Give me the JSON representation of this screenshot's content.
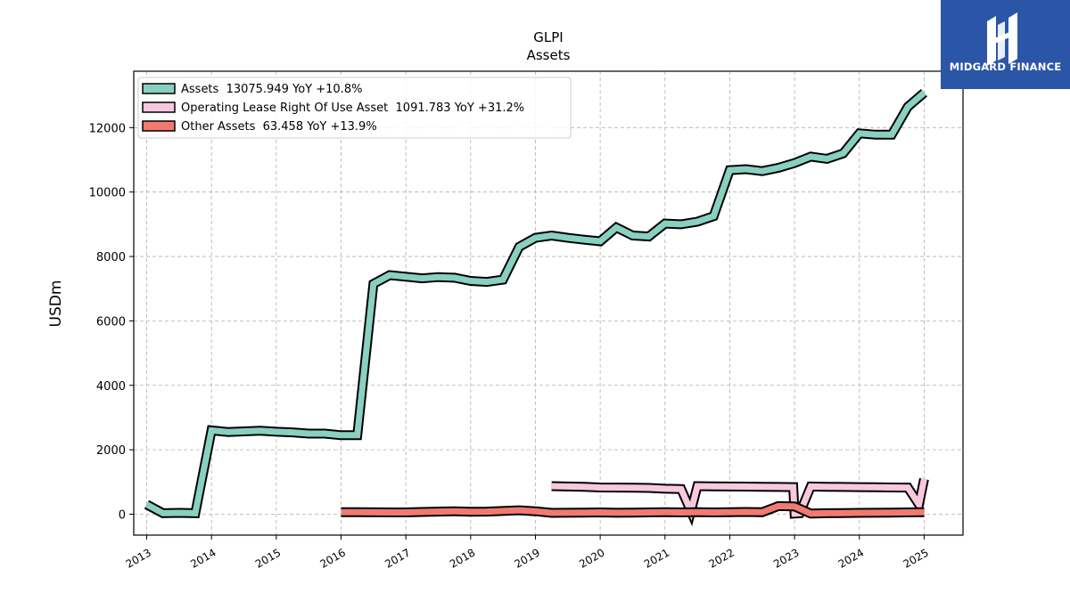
{
  "brand": {
    "logo_text": "MIDGARD FINANCE"
  },
  "chart_data": {
    "type": "line",
    "title": "GLPI",
    "subtitle": "Assets",
    "ylabel": "USDm",
    "xlabel": "",
    "ylim": [
      -650,
      13750
    ],
    "xlim": [
      2012.8,
      2025.6
    ],
    "yticks": [
      0,
      2000,
      4000,
      6000,
      8000,
      10000,
      12000
    ],
    "xticks": [
      2013,
      2014,
      2015,
      2016,
      2017,
      2018,
      2019,
      2020,
      2021,
      2022,
      2023,
      2024,
      2025
    ],
    "grid": true,
    "legend_position": "top-left",
    "series": [
      {
        "name": "Assets",
        "legend": "Assets  13075.949 YoY +10.8%",
        "color": "#88d0c0",
        "x": [
          2013.0,
          2013.25,
          2013.5,
          2013.75,
          2014.0,
          2014.25,
          2014.5,
          2014.75,
          2015.0,
          2015.25,
          2015.5,
          2015.75,
          2016.0,
          2016.25,
          2016.5,
          2016.75,
          2017.0,
          2017.25,
          2017.5,
          2017.75,
          2018.0,
          2018.25,
          2018.5,
          2018.75,
          2019.0,
          2019.25,
          2019.5,
          2019.75,
          2020.0,
          2020.25,
          2020.5,
          2020.75,
          2021.0,
          2021.25,
          2021.5,
          2021.75,
          2022.0,
          2022.25,
          2022.5,
          2022.75,
          2023.0,
          2023.25,
          2023.5,
          2023.75,
          2024.0,
          2024.25,
          2024.5,
          2024.75,
          2025.0
        ],
        "values": [
          300,
          30,
          40,
          30,
          2600,
          2550,
          2570,
          2590,
          2560,
          2540,
          2500,
          2500,
          2450,
          2450,
          7150,
          7420,
          7370,
          7320,
          7360,
          7340,
          7240,
          7210,
          7280,
          8300,
          8580,
          8650,
          8580,
          8520,
          8470,
          8900,
          8650,
          8620,
          9020,
          9000,
          9080,
          9250,
          10680,
          10710,
          10650,
          10750,
          10900,
          11100,
          11030,
          11200,
          11820,
          11780,
          11780,
          12650,
          13080
        ]
      },
      {
        "name": "Operating Lease Right Of Use Asset",
        "legend": "Operating Lease Right Of Use Asset  1091.783 YoY +31.2%",
        "color": "#f9c8dd",
        "x": [
          2019.25,
          2019.5,
          2019.75,
          2020.0,
          2020.25,
          2020.5,
          2020.75,
          2021.0,
          2021.25,
          2021.4,
          2021.5,
          2021.75,
          2022.0,
          2022.25,
          2022.5,
          2022.75,
          2022.98,
          2023.0,
          2023.08,
          2023.25,
          2023.5,
          2023.75,
          2024.0,
          2024.25,
          2024.5,
          2024.75,
          2024.92,
          2025.0
        ],
        "values": [
          870,
          860,
          850,
          830,
          825,
          820,
          815,
          790,
          780,
          90,
          870,
          865,
          860,
          855,
          850,
          845,
          840,
          20,
          30,
          860,
          850,
          845,
          840,
          835,
          830,
          825,
          300,
          1092
        ]
      },
      {
        "name": "Other Assets",
        "legend": "Other Assets  63.458 YoY +13.9%",
        "color": "#f07a70",
        "x": [
          2016.0,
          2016.25,
          2016.5,
          2016.75,
          2017.0,
          2017.25,
          2017.5,
          2017.75,
          2018.0,
          2018.25,
          2018.5,
          2018.75,
          2019.0,
          2019.25,
          2019.5,
          2019.75,
          2020.0,
          2020.25,
          2020.5,
          2020.75,
          2021.0,
          2021.25,
          2021.5,
          2021.75,
          2022.0,
          2022.25,
          2022.5,
          2022.75,
          2023.0,
          2023.25,
          2023.5,
          2023.75,
          2024.0,
          2024.25,
          2024.5,
          2024.75,
          2025.0
        ],
        "values": [
          60,
          60,
          58,
          56,
          55,
          70,
          80,
          90,
          75,
          80,
          100,
          120,
          90,
          40,
          45,
          50,
          55,
          45,
          50,
          55,
          60,
          55,
          60,
          55,
          60,
          70,
          60,
          250,
          240,
          20,
          30,
          35,
          40,
          45,
          50,
          55,
          63
        ]
      }
    ]
  }
}
